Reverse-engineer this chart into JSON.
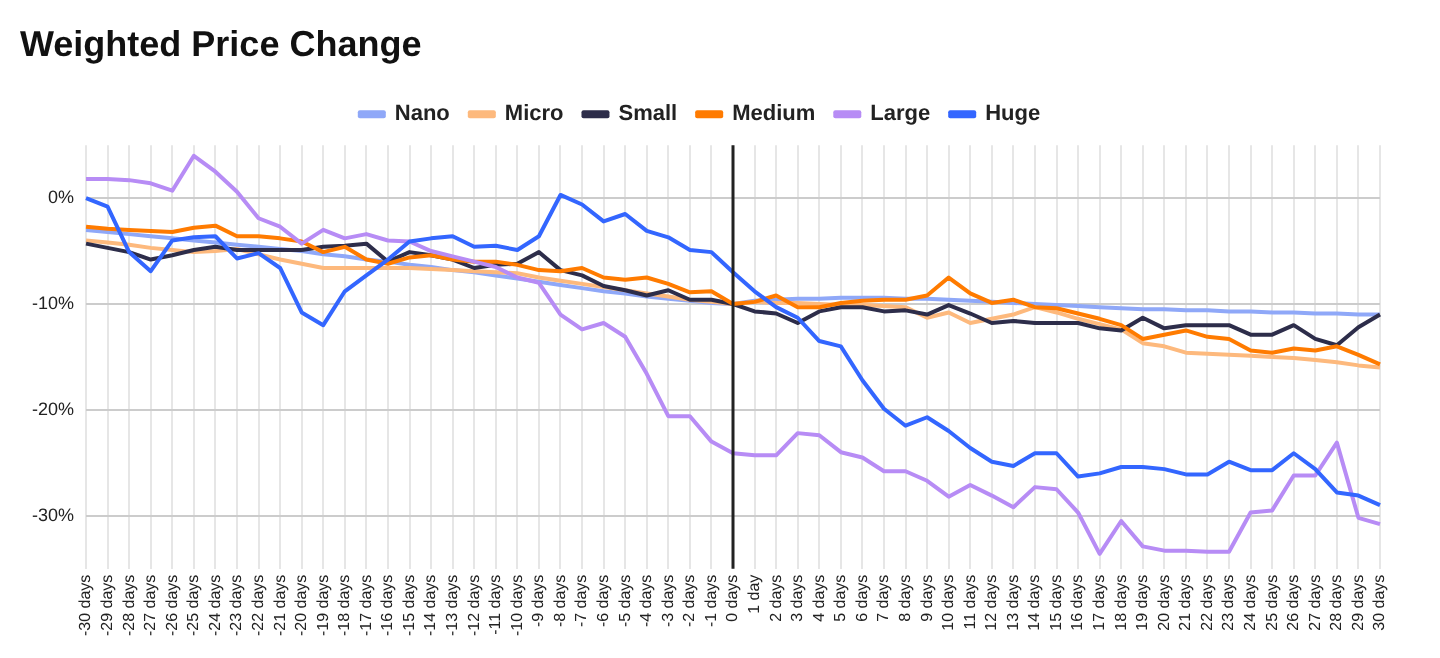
{
  "chart_data": {
    "type": "line",
    "title": "Weighted Price Change",
    "categories": [
      "-30 days",
      "-29 days",
      "-28 days",
      "-27 days",
      "-26 days",
      "-25 days",
      "-24 days",
      "-23 days",
      "-22 days",
      "-21 days",
      "-20 days",
      "-19 days",
      "-18 days",
      "-17 days",
      "-16 days",
      "-15 days",
      "-14 days",
      "-13 days",
      "-12 days",
      "-11 days",
      "-10 days",
      "-9 days",
      "-8 days",
      "-7 days",
      "-6 days",
      "-5 days",
      "-4 days",
      "-3 days",
      "-2 days",
      "-1 days",
      "0 days",
      "1 day",
      "2 days",
      "3 days",
      "4 days",
      "5 days",
      "6 days",
      "7 days",
      "8 days",
      "9 days",
      "10 days",
      "11 days",
      "12 days",
      "13 days",
      "14 days",
      "15 days",
      "16 days",
      "17 days",
      "18 days",
      "19 days",
      "20 days",
      "21 days",
      "22 days",
      "23 days",
      "24 days",
      "25 days",
      "26 days",
      "27 days",
      "28 days",
      "29 days",
      "30 days"
    ],
    "series": [
      {
        "name": "Nano",
        "color": "#8fa8f8",
        "values": [
          -3.0,
          -3.2,
          -3.4,
          -3.6,
          -3.8,
          -4.0,
          -4.2,
          -4.4,
          -4.6,
          -4.8,
          -5.0,
          -5.3,
          -5.5,
          -5.8,
          -6.0,
          -6.3,
          -6.5,
          -6.8,
          -7.0,
          -7.3,
          -7.6,
          -7.9,
          -8.2,
          -8.5,
          -8.8,
          -9.0,
          -9.3,
          -9.5,
          -9.7,
          -9.9,
          -10.0,
          -9.7,
          -9.6,
          -9.5,
          -9.5,
          -9.4,
          -9.4,
          -9.4,
          -9.5,
          -9.5,
          -9.6,
          -9.7,
          -9.8,
          -9.9,
          -10.0,
          -10.1,
          -10.2,
          -10.3,
          -10.4,
          -10.5,
          -10.5,
          -10.6,
          -10.6,
          -10.7,
          -10.7,
          -10.8,
          -10.8,
          -10.9,
          -10.9,
          -11.0,
          -11.0
        ]
      },
      {
        "name": "Micro",
        "color": "#fdb97d",
        "values": [
          -4.0,
          -4.2,
          -4.4,
          -4.7,
          -4.9,
          -5.1,
          -5.0,
          -4.8,
          -5.3,
          -5.8,
          -6.2,
          -6.6,
          -6.6,
          -6.6,
          -6.6,
          -6.6,
          -6.7,
          -6.8,
          -6.9,
          -7.0,
          -7.1,
          -7.5,
          -7.8,
          -8.1,
          -8.4,
          -8.7,
          -9.0,
          -9.3,
          -9.6,
          -9.8,
          -10.0,
          -9.8,
          -9.9,
          -9.9,
          -10.0,
          -10.1,
          -10.1,
          -10.2,
          -10.3,
          -11.3,
          -10.8,
          -11.8,
          -11.4,
          -11.0,
          -10.3,
          -10.8,
          -11.4,
          -11.9,
          -12.4,
          -13.7,
          -14.0,
          -14.6,
          -14.7,
          -14.8,
          -14.9,
          -15.0,
          -15.1,
          -15.3,
          -15.5,
          -15.8,
          -16.0
        ]
      },
      {
        "name": "Small",
        "color": "#2d2d4a",
        "values": [
          -4.3,
          -4.7,
          -5.1,
          -5.8,
          -5.4,
          -4.9,
          -4.6,
          -4.9,
          -4.9,
          -4.9,
          -4.9,
          -4.6,
          -4.5,
          -4.3,
          -6.0,
          -5.1,
          -5.4,
          -5.8,
          -6.6,
          -6.3,
          -6.2,
          -5.1,
          -6.8,
          -7.3,
          -8.3,
          -8.7,
          -9.2,
          -8.7,
          -9.6,
          -9.6,
          -10.0,
          -10.7,
          -10.9,
          -11.8,
          -10.7,
          -10.3,
          -10.3,
          -10.7,
          -10.6,
          -11.0,
          -10.1,
          -10.9,
          -11.8,
          -11.6,
          -11.8,
          -11.8,
          -11.8,
          -12.3,
          -12.5,
          -11.3,
          -12.3,
          -12.0,
          -12.0,
          -12.0,
          -12.9,
          -12.9,
          -12.0,
          -13.3,
          -13.9,
          -12.2,
          -11.0
        ]
      },
      {
        "name": "Medium",
        "color": "#ff7b00",
        "values": [
          -2.7,
          -2.9,
          -3.0,
          -3.1,
          -3.2,
          -2.8,
          -2.6,
          -3.6,
          -3.6,
          -3.8,
          -4.1,
          -5.1,
          -4.6,
          -5.8,
          -6.2,
          -5.6,
          -5.4,
          -5.8,
          -6.0,
          -6.0,
          -6.3,
          -6.8,
          -6.9,
          -6.6,
          -7.5,
          -7.7,
          -7.5,
          -8.1,
          -8.9,
          -8.8,
          -10.0,
          -9.8,
          -9.2,
          -10.3,
          -10.3,
          -9.9,
          -9.7,
          -9.6,
          -9.6,
          -9.2,
          -7.5,
          -9.0,
          -9.9,
          -9.6,
          -10.3,
          -10.4,
          -10.9,
          -11.4,
          -12.0,
          -13.3,
          -12.9,
          -12.5,
          -13.1,
          -13.3,
          -14.4,
          -14.6,
          -14.2,
          -14.4,
          -14.0,
          -14.8,
          -15.7
        ]
      },
      {
        "name": "Large",
        "color": "#b78cf5",
        "values": [
          1.8,
          1.8,
          1.7,
          1.4,
          0.7,
          4.0,
          2.5,
          0.6,
          -1.9,
          -2.7,
          -4.3,
          -3.0,
          -3.8,
          -3.4,
          -4.0,
          -4.1,
          -5.0,
          -5.5,
          -6.0,
          -6.5,
          -7.5,
          -8.0,
          -11.0,
          -12.4,
          -11.8,
          -13.1,
          -16.6,
          -20.6,
          -20.6,
          -23.0,
          -24.1,
          -24.3,
          -24.3,
          -22.2,
          -22.4,
          -24.0,
          -24.5,
          -25.8,
          -25.8,
          -26.7,
          -28.2,
          -27.1,
          -28.1,
          -29.2,
          -27.3,
          -27.5,
          -29.7,
          -33.6,
          -30.5,
          -32.9,
          -33.3,
          -33.3,
          -33.4,
          -33.4,
          -29.7,
          -29.5,
          -26.2,
          -26.2,
          -23.1,
          -30.2,
          -30.8
        ]
      },
      {
        "name": "Huge",
        "color": "#3366ff",
        "values": [
          0.0,
          -0.8,
          -5.1,
          -6.9,
          -4.0,
          -3.7,
          -3.6,
          -5.7,
          -5.2,
          -6.6,
          -10.8,
          -12.0,
          -8.8,
          -7.3,
          -5.8,
          -4.1,
          -3.8,
          -3.6,
          -4.6,
          -4.5,
          -4.9,
          -3.6,
          0.3,
          -0.6,
          -2.2,
          -1.5,
          -3.1,
          -3.7,
          -4.9,
          -5.1,
          -7.0,
          -8.8,
          -10.3,
          -11.3,
          -13.5,
          -14.0,
          -17.2,
          -19.9,
          -21.5,
          -20.7,
          -22.0,
          -23.6,
          -24.9,
          -25.3,
          -24.1,
          -24.1,
          -26.3,
          -26.0,
          -25.4,
          -25.4,
          -25.6,
          -26.1,
          -26.1,
          -24.9,
          -25.7,
          -25.7,
          -24.1,
          -25.6,
          -27.8,
          -28.1,
          -29.0
        ]
      }
    ],
    "ylim": [
      -35,
      5
    ],
    "yticks": [
      {
        "value": 0,
        "label": "0%"
      },
      {
        "value": -10,
        "label": "-10%"
      },
      {
        "value": -20,
        "label": "-20%"
      },
      {
        "value": -30,
        "label": "-30%"
      }
    ],
    "ref_lines": [
      {
        "axis": "x",
        "value": "0 days",
        "color": "#222222"
      }
    ],
    "grid": true,
    "legend": "top",
    "marker": "none",
    "line_style": "solid"
  }
}
